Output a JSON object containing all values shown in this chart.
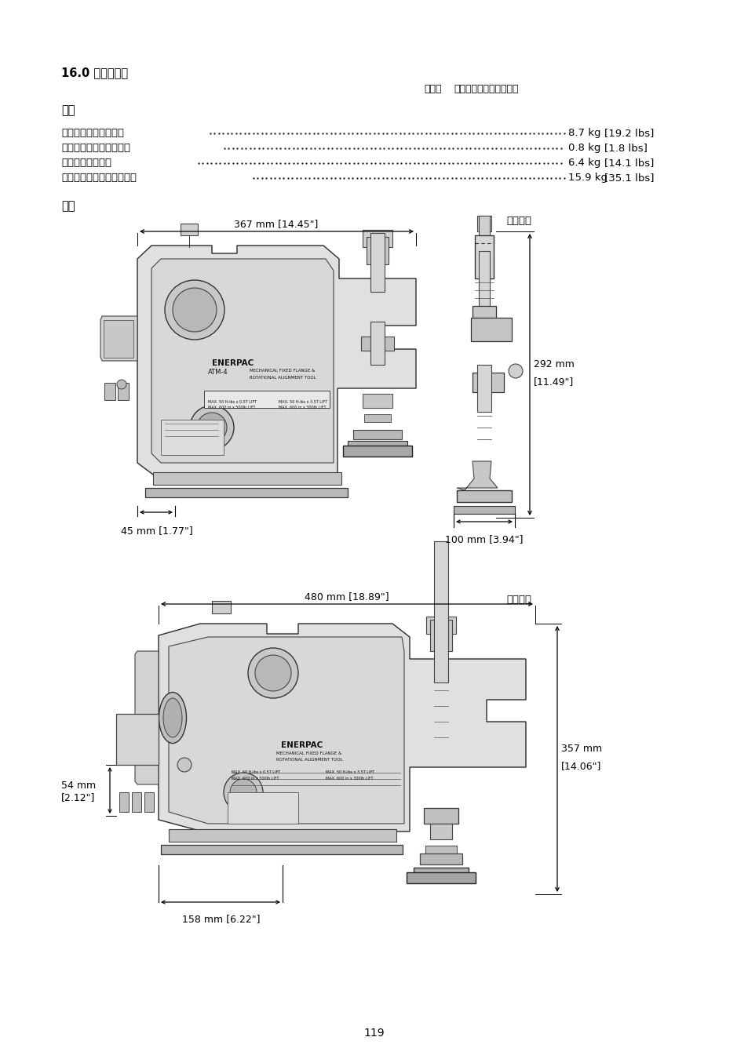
{
  "title": "16.0 重量と寸法",
  "note_bold": "メモ：",
  "note_regular": "表示の重量は概数です。",
  "weight_section_title": "重量",
  "weight_items": [
    {
      "label": "ストラップ付きツール",
      "kg": "8.7 kg",
      "lbs": "[19.2 lbs]"
    },
    {
      "label": "トルクレンチとソケット",
      "kg": "0.8 kg",
      "lbs": "[1.8 lbs]"
    },
    {
      "label": "キャリングケース",
      "kg": "6.4 kg",
      "lbs": "[14.1 lbs]"
    },
    {
      "label": "上記の項目すべての総重量",
      "kg": "15.9 kg",
      "lbs": "[35.1 lbs]"
    }
  ],
  "dim_section_title": "寸法",
  "top_label_right": "最小伸長",
  "bottom_label_right": "最大伸長",
  "dim_top_width": "367 mm [14.45\"]",
  "dim_top_left_bottom": "45 mm [1.77\"]",
  "dim_top_right_height_1": "292 mm",
  "dim_top_right_height_2": "[11.49\"]",
  "dim_top_right_bottom": "100 mm [3.94\"]",
  "dim_bottom_width": "480 mm [18.89\"]",
  "dim_bottom_left_1": "54 mm",
  "dim_bottom_left_2": "[2.12\"]",
  "dim_bottom_left2": "158 mm [6.22\"]",
  "dim_bottom_right_height_1": "357 mm",
  "dim_bottom_right_height_2": "[14.06\"]",
  "page_number": "119",
  "bg_color": "#ffffff",
  "text_color": "#000000",
  "line_color": "#000000"
}
